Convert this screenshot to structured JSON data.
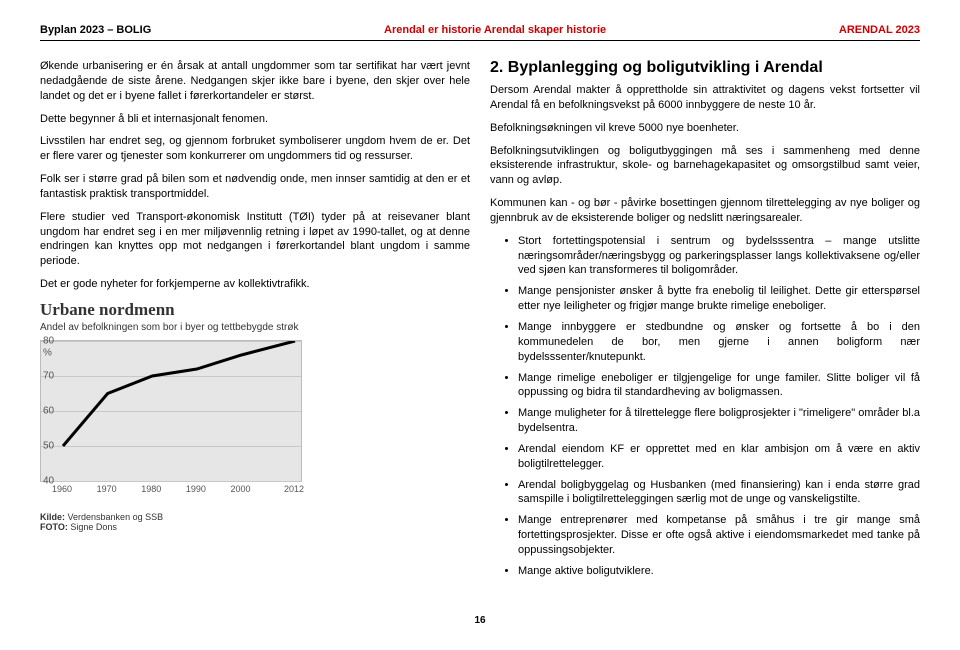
{
  "header": {
    "left": "Byplan 2023 – BOLIG",
    "center": "Arendal er historie  Arendal skaper historie",
    "right": "ARENDAL 2023"
  },
  "left_col": {
    "p1": "Økende urbanisering er én årsak at antall ungdommer som tar sertifikat har vært jevnt nedadgående de siste årene. Nedgangen skjer ikke bare i byene, den skjer over hele landet og det er i byene fallet i førerkortandeler er størst.",
    "p2": "Dette begynner å bli et internasjonalt fenomen.",
    "p3": "Livsstilen har endret seg, og gjennom forbruket symboliserer ungdom hvem de er. Det er flere varer og tjenester som konkurrerer om ungdommers tid og ressurser.",
    "p4": "Folk ser i større grad på bilen som et nødvendig onde, men innser samtidig at den er et fantastisk praktisk transportmiddel.",
    "p5": "Flere studier ved Transport-økonomisk Institutt (TØI) tyder på at reisevaner blant ungdom har endret seg i en mer miljøvennlig retning i løpet av 1990-tallet, og at denne endringen kan knyttes opp mot nedgangen i førerkortandel blant ungdom i samme periode.",
    "p6": "Det er gode nyheter for forkjemperne av kollektivtrafikk."
  },
  "chart": {
    "title": "Urbane nordmenn",
    "subtitle": "Andel av befolkningen som bor i byer og tettbebygde strøk",
    "type": "line",
    "background_color": "#e6e6e6",
    "grid_color": "#c8c8c8",
    "line_color": "#000000",
    "line_width": 3,
    "years": [
      1960,
      1970,
      1980,
      1990,
      2000,
      2012
    ],
    "values": [
      50,
      65,
      70,
      72,
      76,
      80
    ],
    "ylim": [
      40,
      80
    ],
    "yticks": [
      40,
      50,
      60,
      70,
      80
    ],
    "pct_label_at": 80,
    "pct_label": "%",
    "source_prefix": "Kilde:",
    "source": " Verdensbanken og SSB",
    "foto_prefix": "FOTO:",
    "foto": " Signe Dons"
  },
  "right_col": {
    "heading": "2. Byplanlegging og boligutvikling i Arendal",
    "p1": "Dersom Arendal makter å opprettholde sin attraktivitet og dagens vekst fortsetter vil Arendal få en befolkningsvekst på 6000 innbyggere de neste 10 år.",
    "p2": "Befolkningsøkningen vil kreve 5000 nye boenheter.",
    "p3": "Befolkningsutviklingen og boligutbyggingen må ses i sammenheng med denne eksisterende infrastruktur, skole- og barnehagekapasitet og omsorgstilbud samt veier, vann og avløp.",
    "p4": "Kommunen kan - og bør - påvirke bosettingen gjennom tilrettelegging av nye boliger og gjennbruk av de eksisterende boliger og nedslitt næringsarealer.",
    "bullets": [
      "Stort fortettingspotensial i sentrum og bydelsssentra – mange utslitte næringsområder/næringsbygg og parkeringsplasser langs kollektivaksene og/eller ved sjøen kan transformeres til boligområder.",
      "Mange pensjonister ønsker å bytte fra enebolig til leilighet. Dette gir etterspørsel etter nye leiligheter og frigjør mange brukte rimelige eneboliger.",
      "Mange innbyggere er stedbundne og ønsker og  fortsette å bo i den kommunedelen de bor, men gjerne i annen boligform nær bydelsssenter/knutepunkt.",
      "Mange rimelige eneboliger er tilgjengelige for unge familer. Slitte boliger vil få oppussing og bidra til standardheving av boligmassen.",
      "Mange muligheter for å tilrettelegge flere boligprosjekter i \"rimeligere\" områder bl.a bydelsentra.",
      "Arendal eiendom KF er opprettet med en klar ambisjon om å være en aktiv boligtilrettelegger.",
      "Arendal boligbyggelag og Husbanken (med finansiering) kan i enda større grad samspille i boligtilretteleggingen særlig mot de unge og vanskeligstilte.",
      "Mange entreprenører med kompetanse på småhus i tre gir mange små fortettingsprosjekter. Disse er ofte også aktive i eiendomsmarkedet med tanke på oppussingsobjekter.",
      "Mange aktive boligutviklere."
    ]
  },
  "page_number": "16"
}
